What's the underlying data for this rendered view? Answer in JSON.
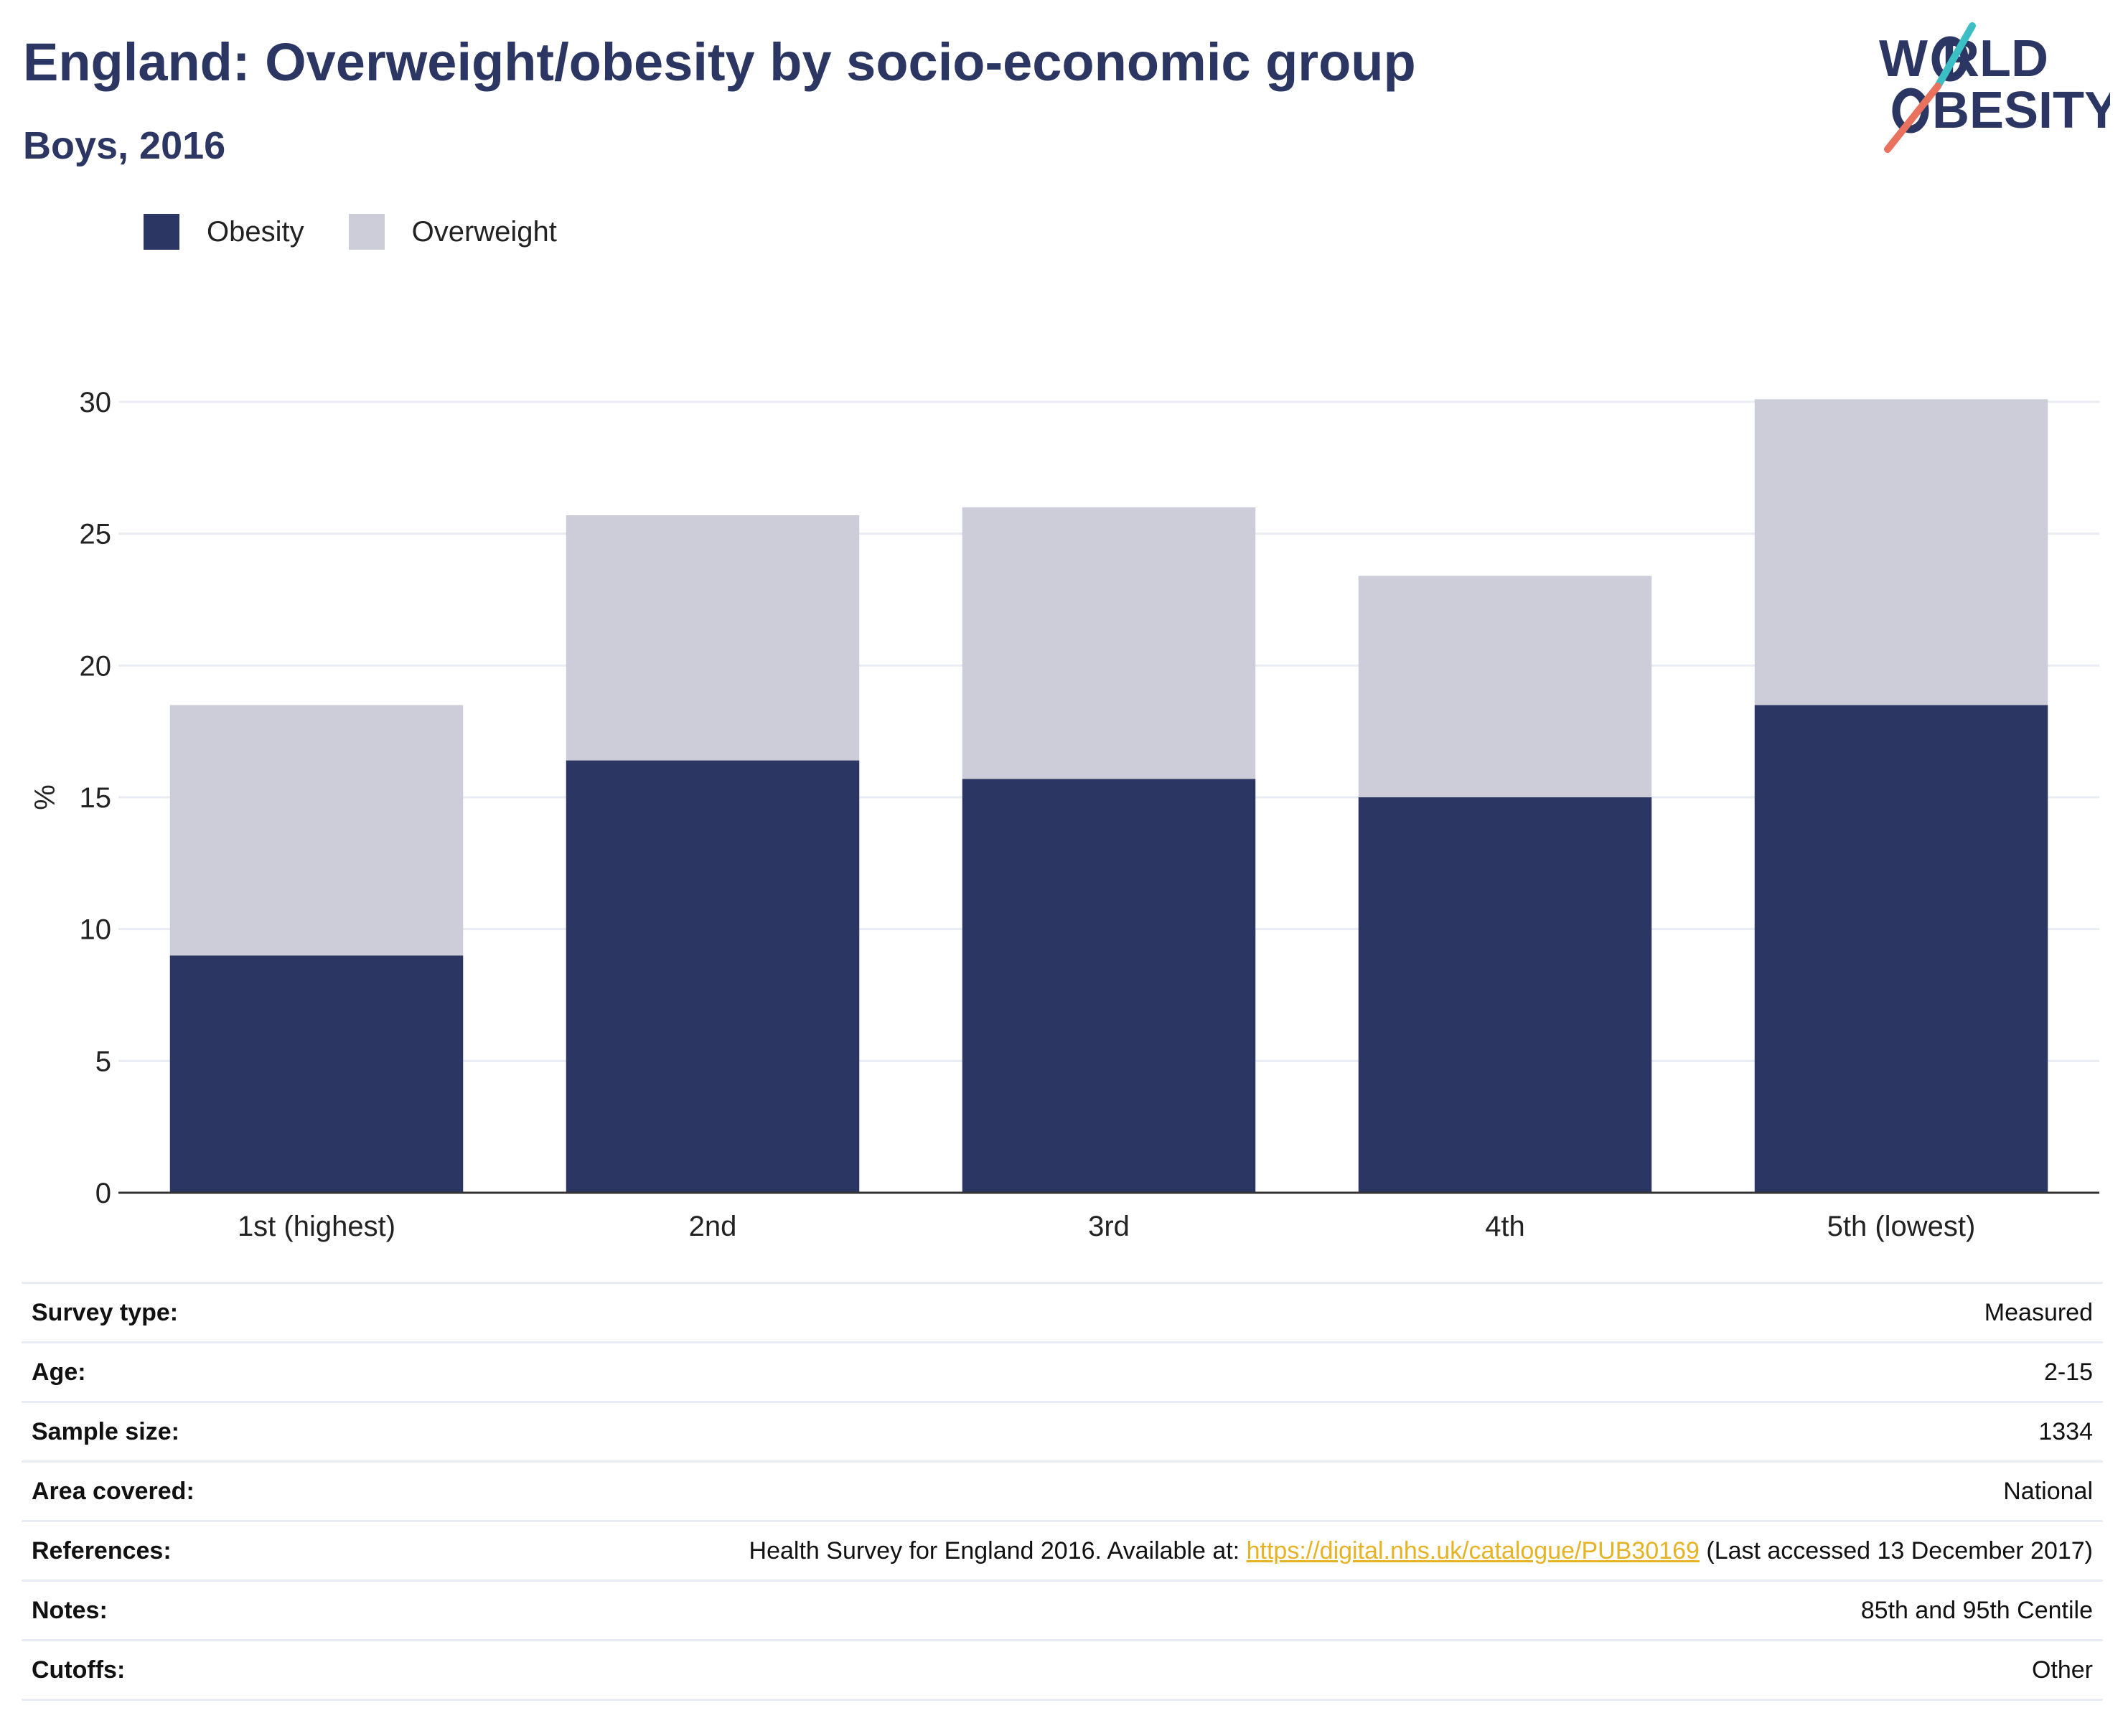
{
  "header": {
    "title": "England: Overweight/obesity by socio-economic group",
    "subtitle": "Boys, 2016"
  },
  "logo": {
    "line1": "W RLD",
    "line2": "BESITY",
    "colors": {
      "text": "#2b3663",
      "slash_top": "#3bbfc4",
      "slash_bottom": "#e8725e"
    }
  },
  "chart_data": {
    "type": "bar",
    "stacked": true,
    "categories": [
      "1st (highest)",
      "2nd",
      "3rd",
      "4th",
      "5th (lowest)"
    ],
    "series": [
      {
        "name": "Obesity",
        "values": [
          9.0,
          16.4,
          15.7,
          15.0,
          18.5
        ],
        "color": "#2b3663"
      },
      {
        "name": "Overweight",
        "values": [
          9.5,
          9.3,
          10.3,
          8.4,
          11.6
        ],
        "color": "#cccdd8"
      }
    ],
    "title": "",
    "xlabel": "",
    "ylabel": "%",
    "ylim": [
      0,
      30
    ],
    "yticks": [
      0,
      5,
      10,
      15,
      20,
      25,
      30
    ],
    "grid": true,
    "legend_position": "top-left"
  },
  "info": {
    "rows": [
      {
        "label": "Survey type:",
        "value": "Measured"
      },
      {
        "label": "Age:",
        "value": "2-15"
      },
      {
        "label": "Sample size:",
        "value": "1334"
      },
      {
        "label": "Area covered:",
        "value": "National"
      },
      {
        "label": "References:",
        "value_prefix": "Health Survey for England 2016. Available at: ",
        "link": "https://digital.nhs.uk/catalogue/PUB30169",
        "value_suffix": " (Last accessed 13 December 2017)"
      },
      {
        "label": "Notes:",
        "value": "85th and 95th Centile"
      },
      {
        "label": "Cutoffs:",
        "value": "Other"
      }
    ]
  }
}
